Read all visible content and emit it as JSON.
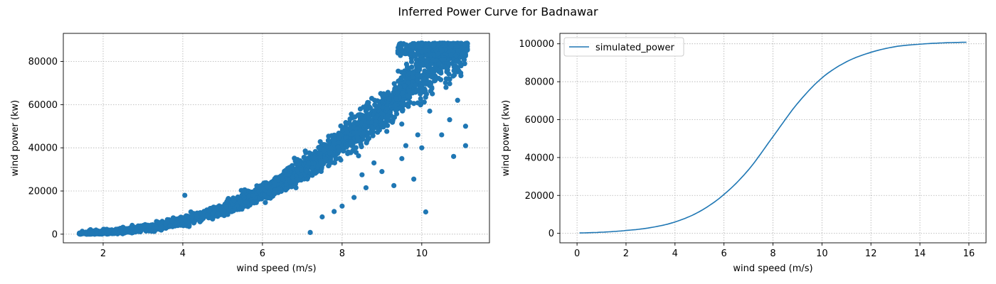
{
  "figure": {
    "title": "Inferred Power Curve for Badnawar"
  },
  "chart_data": [
    {
      "type": "scatter",
      "xlabel": "wind speed (m/s)",
      "ylabel": "wind power (kw)",
      "xlim": [
        1.0,
        11.7
      ],
      "ylim": [
        -4000,
        93000
      ],
      "xticks": [
        2,
        4,
        6,
        8,
        10
      ],
      "yticks": [
        0,
        20000,
        40000,
        60000,
        80000
      ],
      "xtick_labels": [
        "2",
        "4",
        "6",
        "8",
        "10"
      ],
      "ytick_labels": [
        "0",
        "20000",
        "40000",
        "60000",
        "80000"
      ],
      "grid": true,
      "marker_color": "#1f77b4",
      "point_cloud": {
        "x_range": [
          1.4,
          11.15
        ],
        "capacity_plateau": 88500,
        "band_centerline": [
          [
            1.4,
            200
          ],
          [
            2.0,
            800
          ],
          [
            3.0,
            2500
          ],
          [
            4.0,
            6000
          ],
          [
            5.0,
            11500
          ],
          [
            6.0,
            19500
          ],
          [
            7.0,
            30000
          ],
          [
            8.0,
            43000
          ],
          [
            9.0,
            57000
          ],
          [
            10.0,
            74000
          ],
          [
            10.5,
            82000
          ],
          [
            11.15,
            88500
          ]
        ]
      },
      "outliers": [
        [
          4.05,
          18000
        ],
        [
          7.2,
          800
        ],
        [
          10.1,
          10300
        ],
        [
          9.8,
          25500
        ],
        [
          10.8,
          36000
        ],
        [
          10.5,
          46000
        ],
        [
          11.1,
          50000
        ],
        [
          11.1,
          41000
        ],
        [
          9.3,
          22500
        ],
        [
          9.5,
          35000
        ],
        [
          9.0,
          29000
        ],
        [
          8.6,
          21500
        ],
        [
          8.3,
          17000
        ],
        [
          8.0,
          13000
        ],
        [
          7.8,
          10500
        ],
        [
          7.5,
          8000
        ],
        [
          10.2,
          57000
        ],
        [
          10.7,
          53000
        ],
        [
          9.9,
          46000
        ],
        [
          10.0,
          40000
        ],
        [
          8.8,
          33000
        ],
        [
          8.5,
          27500
        ],
        [
          9.6,
          41000
        ],
        [
          10.9,
          62000
        ]
      ]
    },
    {
      "type": "line",
      "xlabel": "wind speed (m/s)",
      "ylabel": "wind power (kw)",
      "xlim": [
        -0.7,
        16.7
      ],
      "ylim": [
        -5000,
        105500
      ],
      "xticks": [
        0,
        2,
        4,
        6,
        8,
        10,
        12,
        14,
        16
      ],
      "yticks": [
        0,
        20000,
        40000,
        60000,
        80000,
        100000
      ],
      "xtick_labels": [
        "0",
        "2",
        "4",
        "6",
        "8",
        "10",
        "12",
        "14",
        "16"
      ],
      "ytick_labels": [
        "0",
        "20000",
        "40000",
        "60000",
        "80000",
        "100000"
      ],
      "grid": true,
      "legend_position": "upper-left",
      "series": [
        {
          "name": "simulated_power",
          "color": "#1f77b4",
          "x": [
            0.1,
            1,
            2,
            3,
            4,
            5,
            6,
            7,
            8,
            9,
            10,
            11,
            12,
            13,
            14,
            15,
            15.9
          ],
          "y": [
            200,
            600,
            1500,
            3000,
            6000,
            11500,
            20500,
            33500,
            51000,
            68500,
            82000,
            90500,
            95500,
            98500,
            99800,
            100500,
            100800
          ]
        }
      ]
    }
  ]
}
